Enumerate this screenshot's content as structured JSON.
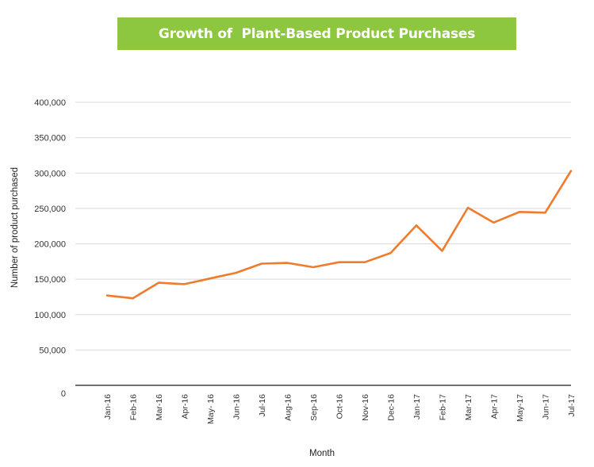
{
  "chart_data": {
    "type": "line",
    "title": "Growth of  Plant-Based Product Purchases",
    "xlabel": "Month",
    "ylabel": "Number of product purchased",
    "categories": [
      "Jan-16",
      "Feb-16",
      "Mar-16",
      "Apr-16",
      "May- 16",
      "Jun-16",
      "Jul-16",
      "Aug-16",
      "Sep-16",
      "Oct-16",
      "Nov-16",
      "Dec-16",
      "Jan-17",
      "Feb-17",
      "Mar-17",
      "Apr-17",
      "May-17",
      "Jun-17",
      "Jul-17"
    ],
    "series": [
      {
        "values": [
          127000,
          123000,
          145000,
          143000,
          151000,
          159000,
          172000,
          173000,
          167000,
          174000,
          174000,
          187000,
          226000,
          190000,
          251000,
          230000,
          245000,
          244000,
          303000
        ]
      }
    ],
    "yticks": [
      "0",
      "50,000",
      "100,000",
      "150,000",
      "200,000",
      "250,000",
      "300,000",
      "350,000",
      "400,000"
    ],
    "ylim": [
      0,
      400000
    ],
    "grid": true,
    "legend": "none",
    "colors": {
      "line": "#ef7b2d",
      "banner": "#8dc63f",
      "grid": "#d9d9d9",
      "axis": "#404040"
    }
  }
}
